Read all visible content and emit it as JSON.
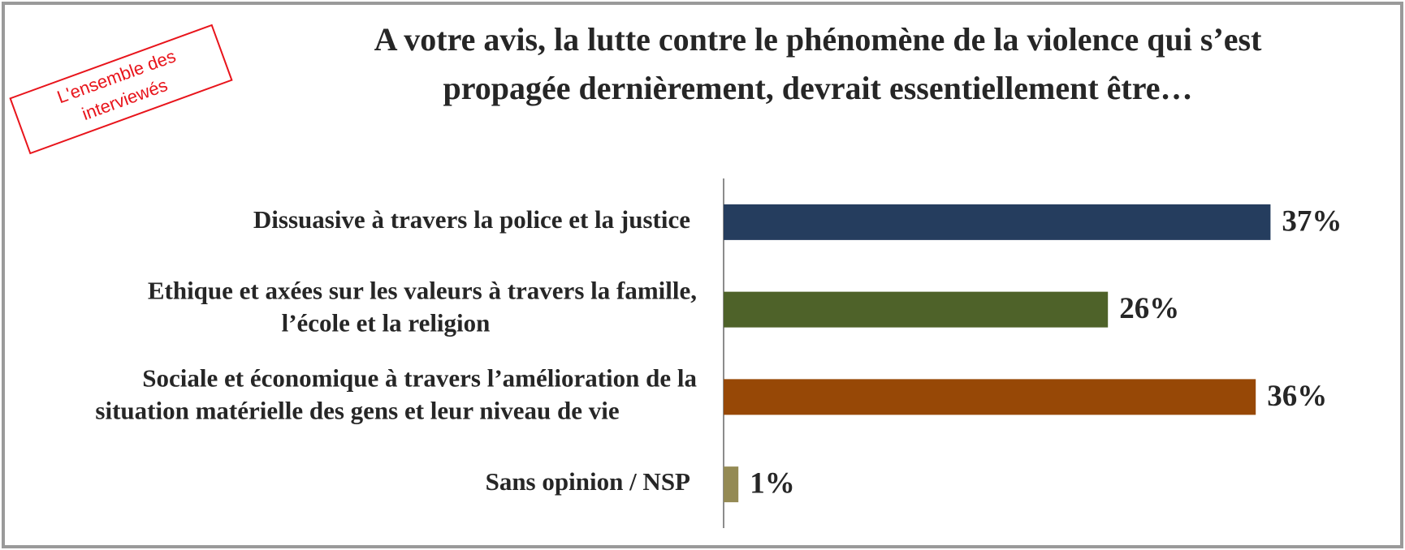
{
  "chart_data": {
    "type": "bar",
    "orientation": "horizontal",
    "title": [
      "A votre avis, la lutte contre le phénomène de la violence qui s’est",
      "propagée dernièrement, devrait essentiellement être…"
    ],
    "annotation": [
      "L'ensemble des",
      "interviewés"
    ],
    "categories": [
      [
        "Dissuasive à travers la police et la justice"
      ],
      [
        "Ethique et axées sur les valeurs à travers la famille,",
        "l’école et la religion"
      ],
      [
        "Sociale et économique à travers l’amélioration de la",
        "situation matérielle des gens et leur niveau  de vie"
      ],
      [
        "Sans opinion / NSP"
      ]
    ],
    "values": [
      37,
      26,
      36,
      1
    ],
    "value_labels": [
      "37%",
      "26%",
      "36%",
      "1%"
    ],
    "colors": [
      "#253d5e",
      "#4e6229",
      "#974806",
      "#948a54"
    ],
    "xlim": [
      0,
      40
    ],
    "grid": false
  }
}
